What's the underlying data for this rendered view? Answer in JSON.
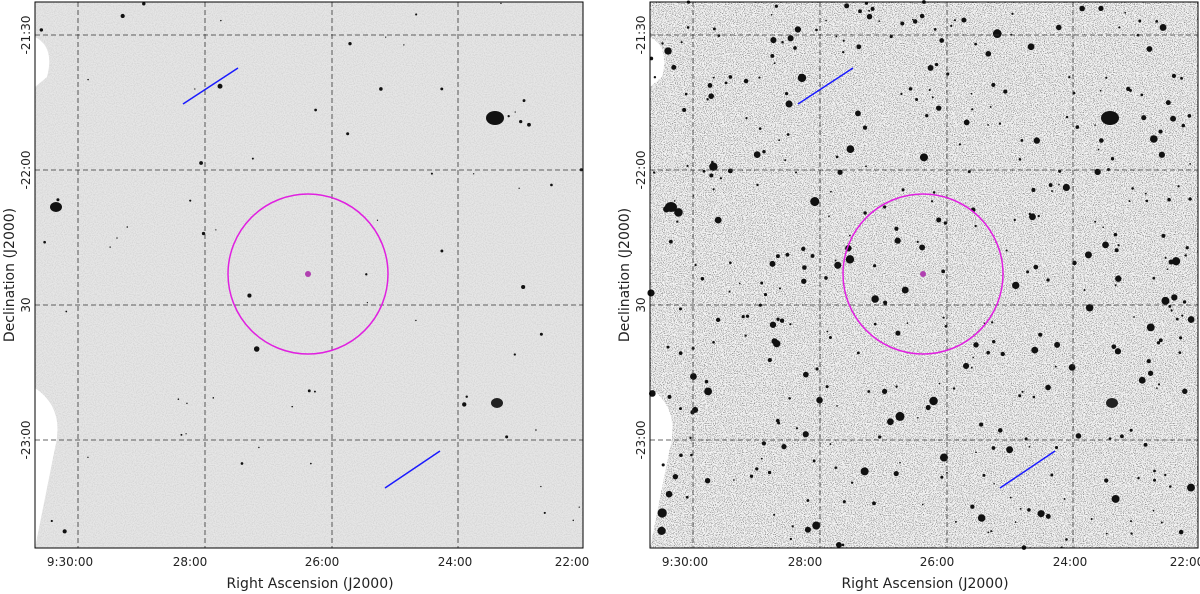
{
  "panels": [
    {
      "x_axis_label": "Right Ascension (J2000)",
      "y_axis_label": "Declination (J2000)",
      "x_tick_labels": [
        "9:30:00",
        "28:00",
        "26:00",
        "24:00",
        "22:00"
      ],
      "y_tick_labels": [
        "-21:30",
        "-22:00",
        "30",
        "-23:00"
      ]
    },
    {
      "x_axis_label": "Right Ascension (J2000)",
      "y_axis_label": "Declination (J2000)",
      "x_tick_labels": [
        "9:30:00",
        "28:00",
        "26:00",
        "24:00",
        "22:00"
      ],
      "y_tick_labels": [
        "-21:30",
        "-22:00",
        "30",
        "-23:00"
      ]
    }
  ]
}
